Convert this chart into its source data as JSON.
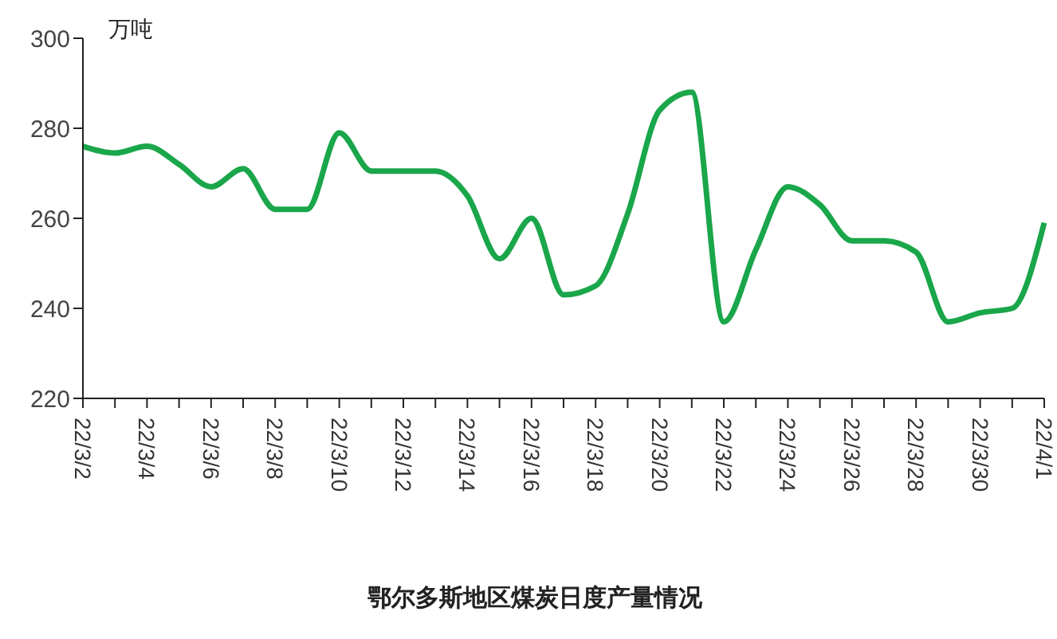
{
  "chart_data": {
    "type": "line",
    "title": "鄂尔多斯地区煤炭日度产量情况",
    "ylabel": "万吨",
    "categories": [
      "22/3/2",
      null,
      "22/3/4",
      null,
      "22/3/6",
      null,
      "22/3/8",
      null,
      "22/3/10",
      null,
      "22/3/12",
      null,
      "22/3/14",
      null,
      "22/3/16",
      null,
      "22/3/18",
      null,
      "22/3/20",
      null,
      "22/3/22",
      null,
      "22/3/24",
      null,
      "22/3/26",
      null,
      "22/3/28",
      null,
      "22/3/30",
      null,
      "22/4/1"
    ],
    "series": [
      {
        "color": "#1aa64a",
        "values": [
          276,
          274.5,
          276,
          272,
          267,
          271,
          262,
          262,
          279,
          270.5,
          270.5,
          270.5,
          265,
          251,
          260,
          243,
          245,
          261,
          284,
          288,
          237,
          253,
          267,
          263,
          255,
          255,
          252.5,
          237,
          239,
          240,
          259
        ]
      }
    ],
    "ylim": [
      220,
      300
    ],
    "yticks": [
      220,
      240,
      260,
      280,
      300
    ],
    "grid": false,
    "legend": false,
    "marker": "none",
    "line_style": "solid"
  }
}
